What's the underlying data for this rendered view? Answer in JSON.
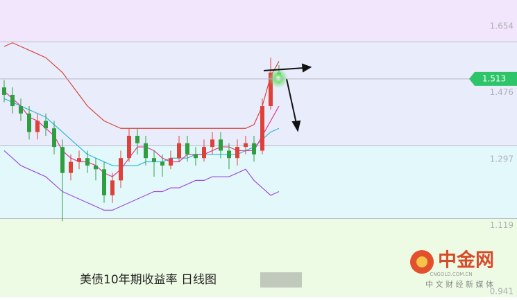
{
  "chart_data": {
    "type": "candlestick",
    "title": "美债10年期收益率  日线图",
    "watermark": "中金网",
    "watermark_url": "CNGOLD.COM.CN",
    "watermark_slogan": "中 文 财 经 新 媒 体",
    "ylim": [
      0.926,
      1.725
    ],
    "yticks": [
      1.654,
      1.476,
      1.297,
      1.119,
      0.941
    ],
    "last_value": 1.513,
    "up_color": "#e0403a",
    "down_color": "#2e9e3e",
    "open": [
      1.49,
      1.47,
      1.44,
      1.42,
      1.37,
      1.4,
      1.38,
      1.33,
      1.26,
      1.29,
      1.3,
      1.28,
      1.27,
      1.2,
      1.24,
      1.3,
      1.36,
      1.34,
      1.3,
      1.29,
      1.28,
      1.3,
      1.34,
      1.31,
      1.3,
      1.33,
      1.35,
      1.32,
      1.3,
      1.33,
      1.34,
      1.32,
      1.44,
      1.53
    ],
    "high": [
      1.51,
      1.49,
      1.46,
      1.44,
      1.42,
      1.42,
      1.4,
      1.35,
      1.31,
      1.32,
      1.32,
      1.3,
      1.29,
      1.26,
      1.32,
      1.38,
      1.38,
      1.36,
      1.32,
      1.31,
      1.32,
      1.36,
      1.36,
      1.33,
      1.35,
      1.37,
      1.37,
      1.34,
      1.35,
      1.36,
      1.36,
      1.46,
      1.57,
      1.55
    ],
    "low": [
      1.45,
      1.42,
      1.4,
      1.35,
      1.35,
      1.36,
      1.31,
      1.13,
      1.24,
      1.27,
      1.26,
      1.24,
      1.18,
      1.18,
      1.22,
      1.29,
      1.31,
      1.28,
      1.25,
      1.25,
      1.27,
      1.29,
      1.29,
      1.28,
      1.29,
      1.31,
      1.3,
      1.27,
      1.28,
      1.31,
      1.29,
      1.31,
      1.43,
      1.5
    ],
    "close": [
      1.47,
      1.44,
      1.42,
      1.37,
      1.4,
      1.38,
      1.33,
      1.26,
      1.29,
      1.3,
      1.28,
      1.27,
      1.2,
      1.24,
      1.3,
      1.36,
      1.34,
      1.3,
      1.29,
      1.28,
      1.3,
      1.34,
      1.31,
      1.3,
      1.33,
      1.35,
      1.32,
      1.3,
      1.33,
      1.34,
      1.31,
      1.44,
      1.53,
      1.513
    ],
    "lines": [
      {
        "color": "#d9443a",
        "values": [
          1.6,
          1.61,
          1.6,
          1.59,
          1.58,
          1.57,
          1.55,
          1.53,
          1.5,
          1.47,
          1.44,
          1.42,
          1.4,
          1.39,
          1.38,
          1.38,
          1.38,
          1.38,
          1.38,
          1.38,
          1.38,
          1.38,
          1.38,
          1.38,
          1.38,
          1.38,
          1.38,
          1.38,
          1.38,
          1.38,
          1.39,
          1.44,
          1.52,
          1.56
        ]
      },
      {
        "color": "#2ab8e0",
        "values": [
          1.46,
          1.45,
          1.44,
          1.43,
          1.42,
          1.41,
          1.39,
          1.37,
          1.35,
          1.33,
          1.31,
          1.3,
          1.29,
          1.28,
          1.28,
          1.28,
          1.28,
          1.29,
          1.29,
          1.29,
          1.3,
          1.3,
          1.3,
          1.31,
          1.31,
          1.31,
          1.31,
          1.31,
          1.31,
          1.32,
          1.33,
          1.35,
          1.37,
          1.38
        ]
      },
      {
        "color": "#a04ce0",
        "values": [
          1.32,
          1.3,
          1.28,
          1.27,
          1.26,
          1.25,
          1.23,
          1.21,
          1.2,
          1.19,
          1.18,
          1.17,
          1.16,
          1.16,
          1.17,
          1.18,
          1.19,
          1.2,
          1.21,
          1.21,
          1.22,
          1.22,
          1.23,
          1.24,
          1.24,
          1.25,
          1.25,
          1.25,
          1.26,
          1.27,
          1.24,
          1.22,
          1.2,
          1.21
        ]
      },
      {
        "color": "#e8348e",
        "values": [
          1.48,
          1.46,
          1.44,
          1.41,
          1.4,
          1.38,
          1.36,
          1.32,
          1.3,
          1.29,
          1.29,
          1.28,
          1.26,
          1.25,
          1.27,
          1.3,
          1.33,
          1.33,
          1.32,
          1.3,
          1.29,
          1.29,
          1.31,
          1.31,
          1.31,
          1.32,
          1.33,
          1.33,
          1.32,
          1.32,
          1.32,
          1.36,
          1.4,
          1.44
        ]
      }
    ]
  }
}
